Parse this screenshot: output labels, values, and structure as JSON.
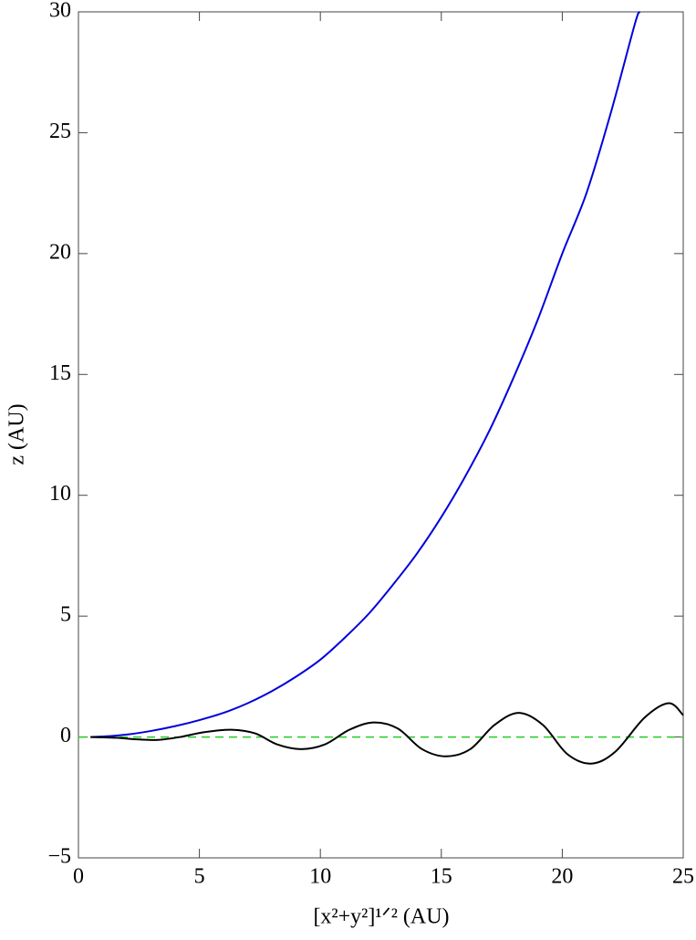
{
  "chart_data": {
    "type": "line",
    "x_label": "[x²+y²]¹ᐟ²   (AU)",
    "y_label": "z (AU)",
    "xlim": [
      0,
      25
    ],
    "xticks": [
      0,
      5,
      10,
      15,
      20,
      25
    ],
    "ylim": [
      -5,
      30
    ],
    "yticks": [
      {
        "value": -5,
        "label": "−5"
      },
      0,
      5,
      10,
      15,
      20,
      25,
      30
    ],
    "reference_line": {
      "value": 0,
      "color": "#22cc22"
    },
    "series": [
      {
        "color": "#0000dd",
        "x": [
          0.5,
          1,
          2,
          3,
          4,
          5,
          6,
          7,
          8,
          9,
          10,
          11,
          12,
          13,
          14,
          15,
          16,
          17,
          18,
          19,
          20,
          21,
          22,
          23,
          23.2
        ],
        "values": [
          0,
          0.02,
          0.1,
          0.25,
          0.45,
          0.7,
          1.0,
          1.4,
          1.9,
          2.5,
          3.2,
          4.1,
          5.1,
          6.3,
          7.6,
          9.1,
          10.8,
          12.7,
          14.9,
          17.3,
          20.0,
          22.5,
          25.8,
          29.5,
          30
        ]
      },
      {
        "color": "#000000",
        "x": [
          0.5,
          1.5,
          2.5,
          3.3,
          4.2,
          5.2,
          6.3,
          7.3,
          8.2,
          9.2,
          10.2,
          11.2,
          12.2,
          13.2,
          14.2,
          15.2,
          16.2,
          17.2,
          18.2,
          19.2,
          20.2,
          21.2,
          22.2,
          23.4,
          24.4,
          25
        ],
        "values": [
          0,
          -0.03,
          -0.1,
          -0.12,
          0,
          0.2,
          0.3,
          0.15,
          -0.3,
          -0.5,
          -0.3,
          0.3,
          0.6,
          0.35,
          -0.5,
          -0.8,
          -0.5,
          0.5,
          1.0,
          0.5,
          -0.7,
          -1.1,
          -0.6,
          0.8,
          1.4,
          0.9
        ]
      }
    ]
  }
}
